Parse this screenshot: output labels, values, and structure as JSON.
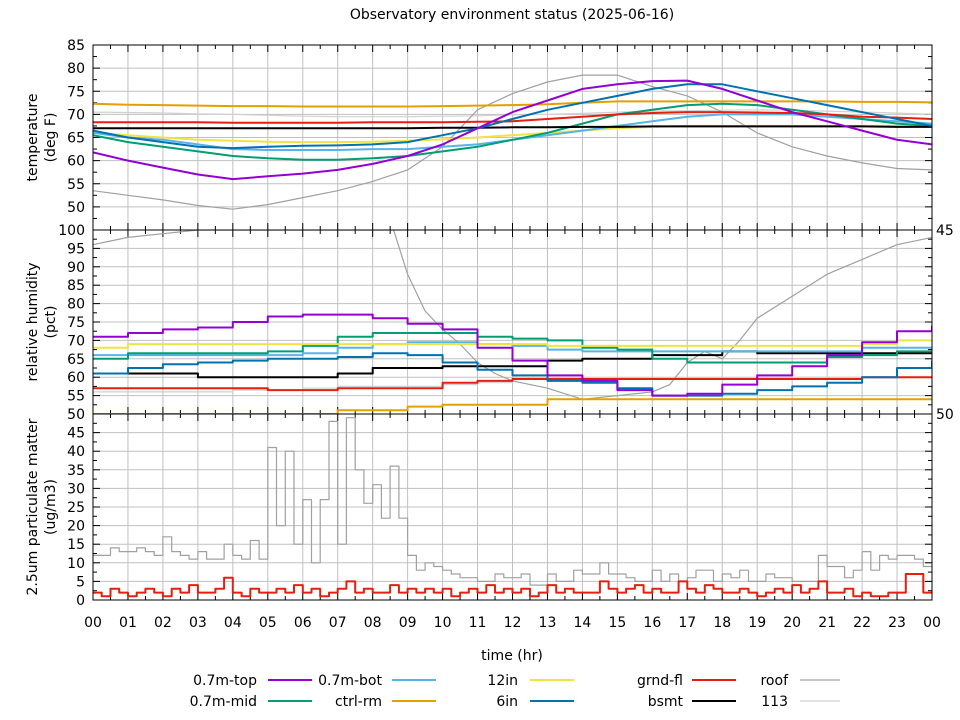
{
  "chart_data": {
    "type": "line",
    "title": "Observatory environment status (2025-06-16)",
    "xlabel": "time (hr)",
    "xlim": [
      0,
      24
    ],
    "x_ticks": [
      "00",
      "01",
      "02",
      "03",
      "04",
      "05",
      "06",
      "07",
      "08",
      "09",
      "10",
      "11",
      "12",
      "13",
      "14",
      "15",
      "16",
      "17",
      "18",
      "19",
      "20",
      "21",
      "22",
      "23",
      "00"
    ],
    "grid": true,
    "legend_placement": "bottom",
    "legend": [
      {
        "name": "0.7m-top",
        "color": "#9400d3"
      },
      {
        "name": "0.7m-mid",
        "color": "#009e73"
      },
      {
        "name": "0.7m-bot",
        "color": "#56b4e9"
      },
      {
        "name": "ctrl-rm",
        "color": "#e69f00"
      },
      {
        "name": "12in",
        "color": "#f0e442"
      },
      {
        "name": "6in",
        "color": "#0072b2"
      },
      {
        "name": "grnd-fl",
        "color": "#e51e10"
      },
      {
        "name": "bsmt",
        "color": "#000000"
      },
      {
        "name": "roof",
        "color": "#a0a0a0"
      },
      {
        "name": "113",
        "color": "#d0d0d0"
      }
    ],
    "panels": [
      {
        "ylabel": [
          "temperature",
          "(deg F)"
        ],
        "ylim": [
          45,
          85
        ],
        "yticks": [
          "45",
          "50",
          "55",
          "60",
          "65",
          "70",
          "75",
          "80",
          "85"
        ],
        "x_step": 1,
        "series": [
          {
            "name": "113",
            "values": [
              70.5,
              70.4,
              70.3,
              70.1,
              70,
              69.8,
              69.6,
              69.5,
              69.5,
              69.5,
              69.6,
              69.7,
              69.9,
              70,
              70.2,
              70.5,
              70.7,
              70.8,
              70.9,
              71,
              70.9,
              70.7,
              70.5,
              70.3,
              70
            ]
          },
          {
            "name": "roof",
            "values": [
              53.5,
              52.5,
              51.5,
              50.3,
              49.5,
              50.5,
              52,
              53.5,
              55.5,
              58,
              63,
              71,
              74.5,
              77,
              78.5,
              78.5,
              76,
              74,
              70.5,
              66,
              63,
              61,
              59.5,
              58.3,
              58
            ]
          },
          {
            "name": "ctrl-rm",
            "values": [
              72.3,
              72.1,
              72,
              71.9,
              71.8,
              71.8,
              71.7,
              71.7,
              71.7,
              71.7,
              71.8,
              71.9,
              72,
              72.2,
              72.5,
              72.8,
              72.8,
              72.8,
              72.8,
              72.8,
              72.8,
              72.8,
              72.7,
              72.7,
              72.6
            ]
          },
          {
            "name": "12in",
            "values": [
              66,
              65.5,
              65,
              64.5,
              64.3,
              64.1,
              64,
              64,
              64.1,
              64.3,
              64.6,
              65,
              65.5,
              66,
              66.5,
              67,
              67.3,
              67.5,
              67.5,
              67.5,
              67.5,
              67.5,
              67.5,
              67.5,
              67.5
            ]
          },
          {
            "name": "0.7m-bot",
            "values": [
              66,
              65,
              64.5,
              63.5,
              62.5,
              62.3,
              62.3,
              62.3,
              62.5,
              62.5,
              63,
              63.5,
              64.5,
              65.5,
              66.5,
              67.5,
              68.5,
              69.5,
              70,
              70,
              70,
              69.5,
              69,
              68.5,
              68
            ]
          },
          {
            "name": "0.7m-mid",
            "values": [
              65.5,
              64,
              63,
              62,
              61,
              60.5,
              60.2,
              60.2,
              60.5,
              61,
              62,
              63,
              64.5,
              66,
              68,
              70,
              71,
              72,
              72.3,
              72,
              71,
              70,
              69,
              68,
              67.5
            ]
          },
          {
            "name": "grnd-fl",
            "values": [
              68.3,
              68.3,
              68.3,
              68.3,
              68.2,
              68.2,
              68.2,
              68.2,
              68.3,
              68.3,
              68.3,
              68.4,
              68.5,
              69,
              69.5,
              70,
              70.3,
              70.5,
              70.5,
              70.4,
              70.3,
              70,
              69.5,
              69.3,
              69
            ]
          },
          {
            "name": "bsmt",
            "values": [
              67,
              67,
              67,
              67,
              67,
              67,
              67,
              67,
              67,
              67,
              67.1,
              67.1,
              67.2,
              67.2,
              67.3,
              67.3,
              67.4,
              67.4,
              67.4,
              67.4,
              67.4,
              67.4,
              67.4,
              67.3,
              67.3
            ]
          },
          {
            "name": "6in",
            "values": [
              66.5,
              65,
              64,
              63,
              62.7,
              63,
              63.2,
              63.3,
              63.5,
              64,
              65.5,
              67,
              69,
              71,
              72.5,
              74,
              75.5,
              76.5,
              76.5,
              75,
              73.5,
              72,
              70.5,
              69,
              67.5
            ]
          },
          {
            "name": "0.7m-top",
            "values": [
              61.8,
              60,
              58.5,
              57,
              56,
              56.6,
              57.2,
              58,
              59.3,
              61,
              63.5,
              67,
              70.5,
              73,
              75.5,
              76.5,
              77.2,
              77.3,
              75.5,
              73,
              70.5,
              68.5,
              66.5,
              64.5,
              63.5
            ]
          }
        ]
      },
      {
        "ylabel": [
          "relative humidity",
          "(pct)"
        ],
        "ylim": [
          50,
          100
        ],
        "yticks": [
          "50",
          "55",
          "60",
          "65",
          "70",
          "75",
          "80",
          "85",
          "90",
          "95",
          "100"
        ],
        "x_step": 1,
        "series": [
          {
            "name": "113",
            "step": true,
            "values": [
              56,
              56,
              56,
              56,
              56.5,
              56.5,
              57,
              57.5,
              57.5,
              57.5,
              58,
              58.5,
              59.5,
              59.5,
              59.5,
              59.5,
              59.5,
              59.5,
              59.5,
              59.5,
              60,
              60,
              60,
              60,
              60
            ]
          },
          {
            "name": "roof",
            "x": [
              0,
              0.5,
              1,
              2,
              3,
              8.6,
              9,
              9.5,
              10,
              10.5,
              11,
              11.5,
              12,
              13,
              14,
              15,
              16,
              16.5,
              17,
              17.5,
              18,
              18.5,
              19,
              20,
              21,
              22,
              23,
              24
            ],
            "values": [
              96,
              97,
              98,
              99,
              100,
              100,
              88,
              78,
              73,
              69,
              64,
              61,
              59,
              57,
              54,
              55,
              56,
              58,
              64,
              67,
              65,
              70,
              76,
              82,
              88,
              92,
              96,
              98
            ]
          },
          {
            "name": "ctrl-rm",
            "step": true,
            "values": [
              50,
              50,
              50,
              50,
              50,
              50,
              50,
              51,
              51,
              52,
              52.5,
              52.5,
              52.5,
              54,
              54,
              54,
              54,
              54,
              54,
              54,
              54,
              54,
              54,
              54,
              54
            ]
          },
          {
            "name": "grnd-fl",
            "step": true,
            "values": [
              57,
              57,
              57,
              57,
              57,
              56.5,
              56.5,
              57,
              57,
              57,
              58.5,
              59,
              59.5,
              59.5,
              59.5,
              59.5,
              59.5,
              59.5,
              59.5,
              59.5,
              59.5,
              59.5,
              60,
              60,
              60
            ]
          },
          {
            "name": "bsmt",
            "step": true,
            "values": [
              61,
              61,
              61,
              60,
              60,
              60,
              60,
              61,
              62.5,
              62.5,
              63,
              63,
              63,
              64.5,
              65,
              65,
              66,
              66,
              67,
              66.5,
              66.5,
              66.5,
              66.5,
              66.5,
              66.5
            ]
          },
          {
            "name": "6in",
            "step": true,
            "values": [
              61,
              62.5,
              63.5,
              64,
              64.5,
              65,
              65,
              65.5,
              66.5,
              66,
              64,
              62,
              60.5,
              59,
              58.5,
              57,
              55,
              55,
              55.5,
              56.5,
              57.5,
              58.5,
              60,
              62.5,
              64.5
            ]
          },
          {
            "name": "0.7m-bot",
            "step": true,
            "values": [
              66,
              66,
              66,
              66,
              66,
              66,
              66.5,
              68,
              69,
              69.5,
              69.5,
              69,
              68.5,
              67.5,
              67,
              67,
              67,
              67,
              67,
              67,
              67,
              67,
              68,
              68,
              68
            ]
          },
          {
            "name": "0.7m-mid",
            "step": true,
            "values": [
              65,
              66.5,
              66.5,
              66.5,
              66.5,
              67,
              68.5,
              71,
              72,
              72,
              72,
              71,
              70.5,
              70,
              68,
              67.5,
              65,
              64,
              64,
              64,
              64,
              65.5,
              66,
              67,
              67
            ]
          },
          {
            "name": "12in",
            "step": true,
            "values": [
              68,
              69,
              69,
              69,
              69,
              69,
              69,
              69,
              69,
              69,
              69,
              69,
              69,
              68.5,
              68.5,
              68.5,
              68.5,
              68.5,
              68.5,
              68.5,
              68.5,
              68.5,
              69,
              70,
              70
            ]
          },
          {
            "name": "0.7m-top",
            "step": true,
            "values": [
              71,
              72,
              73,
              73.5,
              75,
              76.5,
              77,
              77,
              76,
              74.5,
              73,
              68,
              64.5,
              60.5,
              59,
              56.5,
              55,
              55.5,
              58,
              60.5,
              63,
              66,
              69.5,
              72.5,
              74
            ]
          }
        ]
      },
      {
        "ylabel": [
          "2.5um particulate matter",
          "(ug/m3)"
        ],
        "ylim": [
          0,
          50
        ],
        "yticks": [
          "0",
          "5",
          "10",
          "15",
          "20",
          "25",
          "30",
          "35",
          "40",
          "45",
          "50"
        ],
        "x_step": 0.25,
        "series": [
          {
            "name": "roof",
            "step": true,
            "values": [
              12,
              12,
              14,
              13,
              13,
              14,
              13,
              12,
              17,
              13,
              12,
              11,
              13,
              11,
              11,
              15,
              12,
              11,
              16,
              11,
              41,
              20,
              40,
              15,
              27,
              10,
              27,
              48,
              15,
              49,
              35,
              26,
              31,
              22,
              36,
              22,
              12,
              8,
              10,
              9,
              8,
              7,
              6,
              6,
              5,
              5,
              7,
              6,
              6,
              7,
              4,
              4,
              7,
              5,
              5,
              8,
              7,
              7,
              10,
              7,
              7,
              6,
              5,
              5,
              8,
              5,
              7,
              5,
              6,
              8,
              8,
              5,
              7,
              6,
              8,
              5,
              5,
              7,
              6,
              6,
              5,
              5,
              5,
              12,
              9,
              9,
              6,
              8,
              13,
              8,
              12,
              11,
              12,
              12,
              11,
              9,
              9
            ]
          },
          {
            "name": "grnd-fl",
            "step": true,
            "values": [
              2,
              1,
              3,
              2,
              1,
              2,
              3,
              2,
              1,
              3,
              2,
              4,
              2,
              2,
              3,
              6,
              2,
              1,
              3,
              2,
              2,
              3,
              2,
              4,
              2,
              3,
              1,
              2,
              3,
              5,
              2,
              3,
              2,
              2,
              4,
              2,
              3,
              2,
              3,
              2,
              3,
              1,
              2,
              3,
              2,
              4,
              2,
              3,
              2,
              3,
              1,
              2,
              4,
              2,
              3,
              2,
              2,
              2,
              5,
              3,
              2,
              3,
              4,
              2,
              3,
              2,
              2,
              5,
              3,
              2,
              4,
              3,
              2,
              2,
              3,
              2,
              1,
              2,
              3,
              2,
              4,
              2,
              3,
              5,
              2,
              2,
              3,
              1,
              2,
              1,
              1,
              2,
              2,
              7,
              7,
              2,
              2
            ]
          }
        ]
      }
    ]
  }
}
